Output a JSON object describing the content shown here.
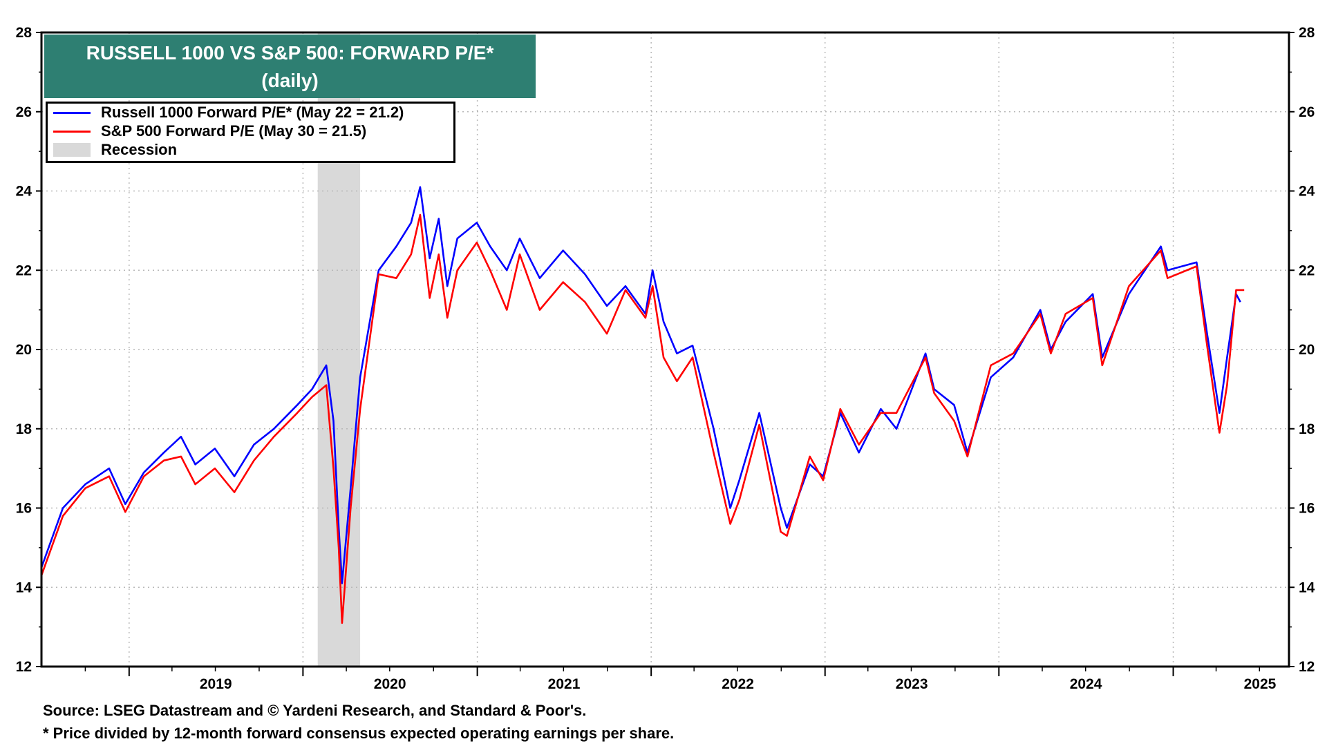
{
  "chart_data": {
    "type": "line",
    "title": "RUSSELL 1000 VS S&P 500: FORWARD P/E*",
    "subtitle": "(daily)",
    "x_range": [
      "2018-07-01",
      "2025-09-01"
    ],
    "ylim": [
      12,
      28
    ],
    "y_ticks": [
      12,
      14,
      16,
      18,
      20,
      22,
      24,
      26,
      28
    ],
    "x_tick_labels": [
      "2019",
      "2020",
      "2021",
      "2022",
      "2023",
      "2024",
      "2025"
    ],
    "grid": true,
    "legend_position": "top-left",
    "recession": {
      "label": "Recession",
      "start": "2020-02-01",
      "end": "2020-04-30",
      "color": "#d9d9d9"
    },
    "series": [
      {
        "name": "Russell 1000 Forward P/E* (May 22 = 21.2)",
        "color": "#0000ff",
        "points": [
          [
            "2018-07-01",
            14.5
          ],
          [
            "2018-08-15",
            16.0
          ],
          [
            "2018-10-01",
            16.6
          ],
          [
            "2018-11-20",
            17.0
          ],
          [
            "2018-12-24",
            16.1
          ],
          [
            "2019-02-01",
            16.9
          ],
          [
            "2019-03-15",
            17.4
          ],
          [
            "2019-04-20",
            17.8
          ],
          [
            "2019-05-20",
            17.1
          ],
          [
            "2019-06-30",
            17.5
          ],
          [
            "2019-08-10",
            16.8
          ],
          [
            "2019-09-20",
            17.6
          ],
          [
            "2019-11-01",
            18.0
          ],
          [
            "2019-12-20",
            18.6
          ],
          [
            "2020-01-20",
            19.0
          ],
          [
            "2020-02-19",
            19.6
          ],
          [
            "2020-03-05",
            18.2
          ],
          [
            "2020-03-16",
            15.5
          ],
          [
            "2020-03-23",
            14.1
          ],
          [
            "2020-04-10",
            16.5
          ],
          [
            "2020-04-30",
            19.3
          ],
          [
            "2020-06-08",
            22.0
          ],
          [
            "2020-07-15",
            22.6
          ],
          [
            "2020-08-15",
            23.2
          ],
          [
            "2020-09-03",
            24.1
          ],
          [
            "2020-09-23",
            22.3
          ],
          [
            "2020-10-12",
            23.3
          ],
          [
            "2020-10-30",
            21.6
          ],
          [
            "2020-11-20",
            22.8
          ],
          [
            "2020-12-31",
            23.2
          ],
          [
            "2021-01-28",
            22.6
          ],
          [
            "2021-03-04",
            22.0
          ],
          [
            "2021-03-31",
            22.8
          ],
          [
            "2021-05-12",
            21.8
          ],
          [
            "2021-06-30",
            22.5
          ],
          [
            "2021-08-15",
            21.9
          ],
          [
            "2021-09-30",
            21.1
          ],
          [
            "2021-11-08",
            21.6
          ],
          [
            "2021-12-20",
            20.9
          ],
          [
            "2022-01-04",
            22.0
          ],
          [
            "2022-01-27",
            20.7
          ],
          [
            "2022-02-24",
            19.9
          ],
          [
            "2022-03-29",
            20.1
          ],
          [
            "2022-05-12",
            18.0
          ],
          [
            "2022-06-16",
            16.0
          ],
          [
            "2022-07-05",
            16.7
          ],
          [
            "2022-08-16",
            18.4
          ],
          [
            "2022-09-30",
            16.0
          ],
          [
            "2022-10-13",
            15.5
          ],
          [
            "2022-11-30",
            17.1
          ],
          [
            "2022-12-28",
            16.8
          ],
          [
            "2023-02-02",
            18.4
          ],
          [
            "2023-03-13",
            17.4
          ],
          [
            "2023-04-28",
            18.5
          ],
          [
            "2023-05-31",
            18.0
          ],
          [
            "2023-07-31",
            19.9
          ],
          [
            "2023-08-18",
            19.0
          ],
          [
            "2023-09-29",
            18.6
          ],
          [
            "2023-10-27",
            17.4
          ],
          [
            "2023-12-15",
            19.3
          ],
          [
            "2024-01-31",
            19.8
          ],
          [
            "2024-03-28",
            21.0
          ],
          [
            "2024-04-19",
            20.0
          ],
          [
            "2024-05-20",
            20.7
          ],
          [
            "2024-07-16",
            21.4
          ],
          [
            "2024-08-05",
            19.8
          ],
          [
            "2024-09-30",
            21.4
          ],
          [
            "2024-12-06",
            22.6
          ],
          [
            "2024-12-20",
            22.0
          ],
          [
            "2025-02-19",
            22.2
          ],
          [
            "2025-03-13",
            20.4
          ],
          [
            "2025-04-08",
            18.4
          ],
          [
            "2025-04-24",
            19.8
          ],
          [
            "2025-05-13",
            21.4
          ],
          [
            "2025-05-22",
            21.2
          ]
        ]
      },
      {
        "name": "S&P 500 Forward P/E (May 30 = 21.5)",
        "color": "#ff0000",
        "points": [
          [
            "2018-07-01",
            14.3
          ],
          [
            "2018-08-15",
            15.8
          ],
          [
            "2018-10-01",
            16.5
          ],
          [
            "2018-11-20",
            16.8
          ],
          [
            "2018-12-24",
            15.9
          ],
          [
            "2019-02-01",
            16.8
          ],
          [
            "2019-03-15",
            17.2
          ],
          [
            "2019-04-20",
            17.3
          ],
          [
            "2019-05-20",
            16.6
          ],
          [
            "2019-06-30",
            17.0
          ],
          [
            "2019-08-10",
            16.4
          ],
          [
            "2019-09-20",
            17.2
          ],
          [
            "2019-11-01",
            17.8
          ],
          [
            "2019-12-20",
            18.4
          ],
          [
            "2020-01-20",
            18.8
          ],
          [
            "2020-02-19",
            19.1
          ],
          [
            "2020-03-05",
            17.0
          ],
          [
            "2020-03-16",
            15.0
          ],
          [
            "2020-03-23",
            13.1
          ],
          [
            "2020-04-10",
            16.0
          ],
          [
            "2020-04-30",
            18.5
          ],
          [
            "2020-06-08",
            21.9
          ],
          [
            "2020-07-15",
            21.8
          ],
          [
            "2020-08-15",
            22.4
          ],
          [
            "2020-09-03",
            23.4
          ],
          [
            "2020-09-23",
            21.3
          ],
          [
            "2020-10-12",
            22.4
          ],
          [
            "2020-10-30",
            20.8
          ],
          [
            "2020-11-20",
            22.0
          ],
          [
            "2020-12-31",
            22.7
          ],
          [
            "2021-01-28",
            22.0
          ],
          [
            "2021-03-04",
            21.0
          ],
          [
            "2021-03-31",
            22.4
          ],
          [
            "2021-05-12",
            21.0
          ],
          [
            "2021-06-30",
            21.7
          ],
          [
            "2021-08-15",
            21.2
          ],
          [
            "2021-09-30",
            20.4
          ],
          [
            "2021-11-08",
            21.5
          ],
          [
            "2021-12-20",
            20.8
          ],
          [
            "2022-01-04",
            21.6
          ],
          [
            "2022-01-27",
            19.8
          ],
          [
            "2022-02-24",
            19.2
          ],
          [
            "2022-03-29",
            19.8
          ],
          [
            "2022-05-12",
            17.4
          ],
          [
            "2022-06-16",
            15.6
          ],
          [
            "2022-07-05",
            16.2
          ],
          [
            "2022-08-16",
            18.1
          ],
          [
            "2022-09-30",
            15.4
          ],
          [
            "2022-10-13",
            15.3
          ],
          [
            "2022-11-30",
            17.3
          ],
          [
            "2022-12-28",
            16.7
          ],
          [
            "2023-02-02",
            18.5
          ],
          [
            "2023-03-13",
            17.6
          ],
          [
            "2023-04-28",
            18.4
          ],
          [
            "2023-05-31",
            18.4
          ],
          [
            "2023-07-31",
            19.8
          ],
          [
            "2023-08-18",
            18.9
          ],
          [
            "2023-09-29",
            18.2
          ],
          [
            "2023-10-27",
            17.3
          ],
          [
            "2023-12-15",
            19.6
          ],
          [
            "2024-01-31",
            19.9
          ],
          [
            "2024-03-28",
            20.9
          ],
          [
            "2024-04-19",
            19.9
          ],
          [
            "2024-05-20",
            20.9
          ],
          [
            "2024-07-16",
            21.3
          ],
          [
            "2024-08-05",
            19.6
          ],
          [
            "2024-09-30",
            21.6
          ],
          [
            "2024-12-06",
            22.5
          ],
          [
            "2024-12-20",
            21.8
          ],
          [
            "2025-02-19",
            22.1
          ],
          [
            "2025-03-13",
            20.1
          ],
          [
            "2025-04-08",
            17.9
          ],
          [
            "2025-04-24",
            19.1
          ],
          [
            "2025-05-13",
            21.5
          ],
          [
            "2025-05-30",
            21.5
          ]
        ]
      }
    ]
  },
  "footer": {
    "source": "Source: LSEG Datastream and © Yardeni Research, and Standard & Poor's.",
    "note": "* Price divided by 12-month forward consensus expected operating earnings per share."
  }
}
